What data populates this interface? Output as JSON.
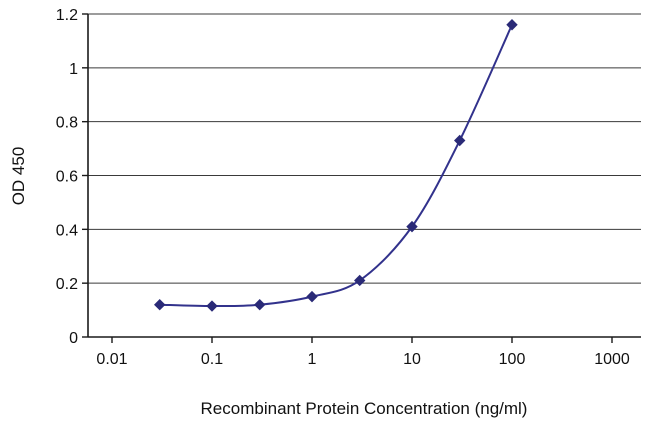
{
  "chart_data": {
    "type": "line",
    "title": "",
    "xlabel": "Recombinant Protein Concentration (ng/ml)",
    "ylabel": "OD 450",
    "x_scale": "log",
    "xlim": [
      0.01,
      1000
    ],
    "ylim": [
      0,
      1.2
    ],
    "x_ticks": [
      0.01,
      0.1,
      1,
      10,
      100,
      1000
    ],
    "x_tick_labels": [
      "0.01",
      "0.1",
      "1",
      "10",
      "100",
      "1000"
    ],
    "y_ticks": [
      0,
      0.2,
      0.4,
      0.6,
      0.8,
      1.0,
      1.2
    ],
    "y_tick_labels": [
      "0",
      "0.2",
      "0.4",
      "0.6",
      "0.8",
      "1",
      "1.2"
    ],
    "grid": "horizontal",
    "legend": "none",
    "line_style": "smooth",
    "series": [
      {
        "name": "OD 450",
        "marker": "diamond",
        "color": "#32328c",
        "marker_color": "#2a2a77",
        "x": [
          0.03,
          0.1,
          0.3,
          1,
          3,
          10,
          30,
          100
        ],
        "y": [
          0.12,
          0.115,
          0.12,
          0.15,
          0.21,
          0.41,
          0.73,
          1.16
        ]
      }
    ],
    "colors": {
      "background": "#ffffff",
      "axis": "#1a1a1a",
      "gridline": "#3a3a3a",
      "text": "#111111"
    }
  }
}
